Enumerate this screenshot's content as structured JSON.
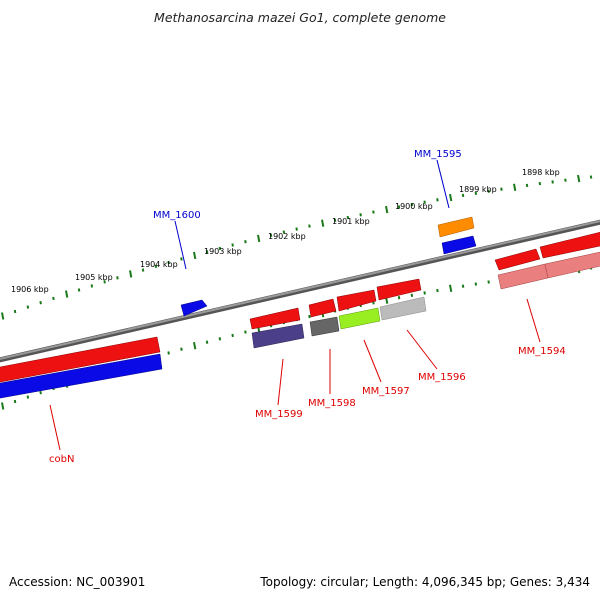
{
  "title": "Methanosarcina mazei Go1, complete genome",
  "footer": {
    "accession": "Accession: NC_003901",
    "topology": "Topology: circular; Length: 4,096,345 bp; Genes: 3,434"
  },
  "colors": {
    "backbone": "#808080",
    "ticks": "#1a7a1a",
    "forward_label": "#0000cc",
    "reverse_label": "#dd0000",
    "red_gene": "#ee1111",
    "blue_gene": "#0a0ae6",
    "orange_gene": "#ff8c00",
    "dark_purple_gene": "#4b3f8a",
    "dark_gray_gene": "#666666",
    "light_green_gene": "#99ee22",
    "light_gray_gene": "#bbbbbb",
    "pink_gene": "#ea7f7f"
  },
  "scale_labels": [
    "1906 kbp",
    "1905 kbp",
    "1904 kbp",
    "1903 kbp",
    "1902 kbp",
    "1901 kbp",
    "1900 kbp",
    "1899 kbp",
    "1898 kbp"
  ],
  "gene_labels": [
    {
      "id": "mm1595",
      "text": "MM_1595",
      "strand": "forward"
    },
    {
      "id": "mm1600",
      "text": "MM_1600",
      "strand": "forward"
    },
    {
      "id": "mm1594",
      "text": "MM_1594",
      "strand": "reverse"
    },
    {
      "id": "mm1596",
      "text": "MM_1596",
      "strand": "reverse"
    },
    {
      "id": "mm1597",
      "text": "MM_1597",
      "strand": "reverse"
    },
    {
      "id": "mm1598",
      "text": "MM_1598",
      "strand": "reverse"
    },
    {
      "id": "mm1599",
      "text": "MM_1599",
      "strand": "reverse"
    },
    {
      "id": "cobn",
      "text": "cobN",
      "strand": "reverse"
    }
  ]
}
